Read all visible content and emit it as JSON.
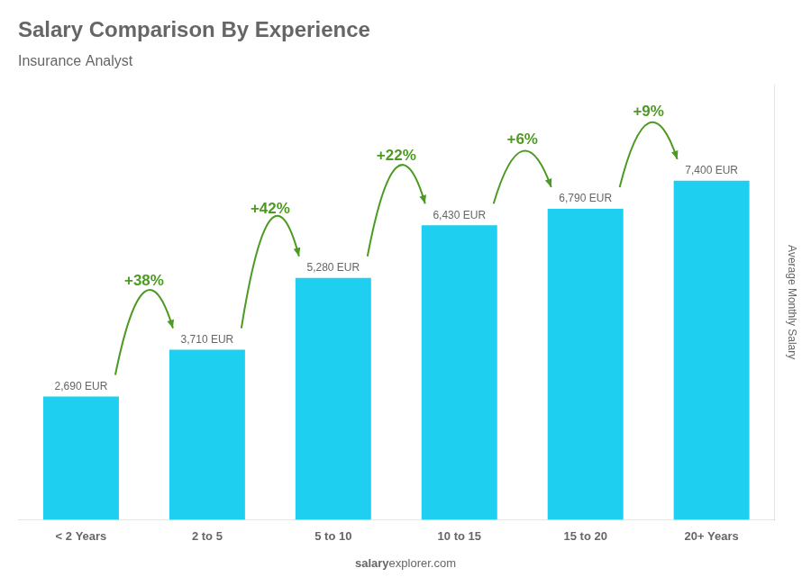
{
  "chart_data": {
    "type": "bar",
    "title": "Salary Comparison By Experience",
    "subtitle": "Insurance Analyst",
    "ylabel": "Average Monthly Salary",
    "footer": [
      "salary",
      "explorer.com"
    ],
    "categories": [
      "< 2 Years",
      "2 to 5",
      "5 to 10",
      "10 to 15",
      "15 to 20",
      "20+ Years"
    ],
    "values": [
      2690,
      3710,
      5280,
      6430,
      6790,
      7400
    ],
    "value_labels": [
      "2,690 EUR",
      "3,710 EUR",
      "5,280 EUR",
      "6,430 EUR",
      "6,790 EUR",
      "7,400 EUR"
    ],
    "data_labels": true,
    "annotations": [
      "+38%",
      "+42%",
      "+22%",
      "+6%",
      "+9%"
    ],
    "color": "#1ECFEF",
    "ylim": [
      0,
      9500
    ],
    "grid": false,
    "tick_labels": "x"
  }
}
